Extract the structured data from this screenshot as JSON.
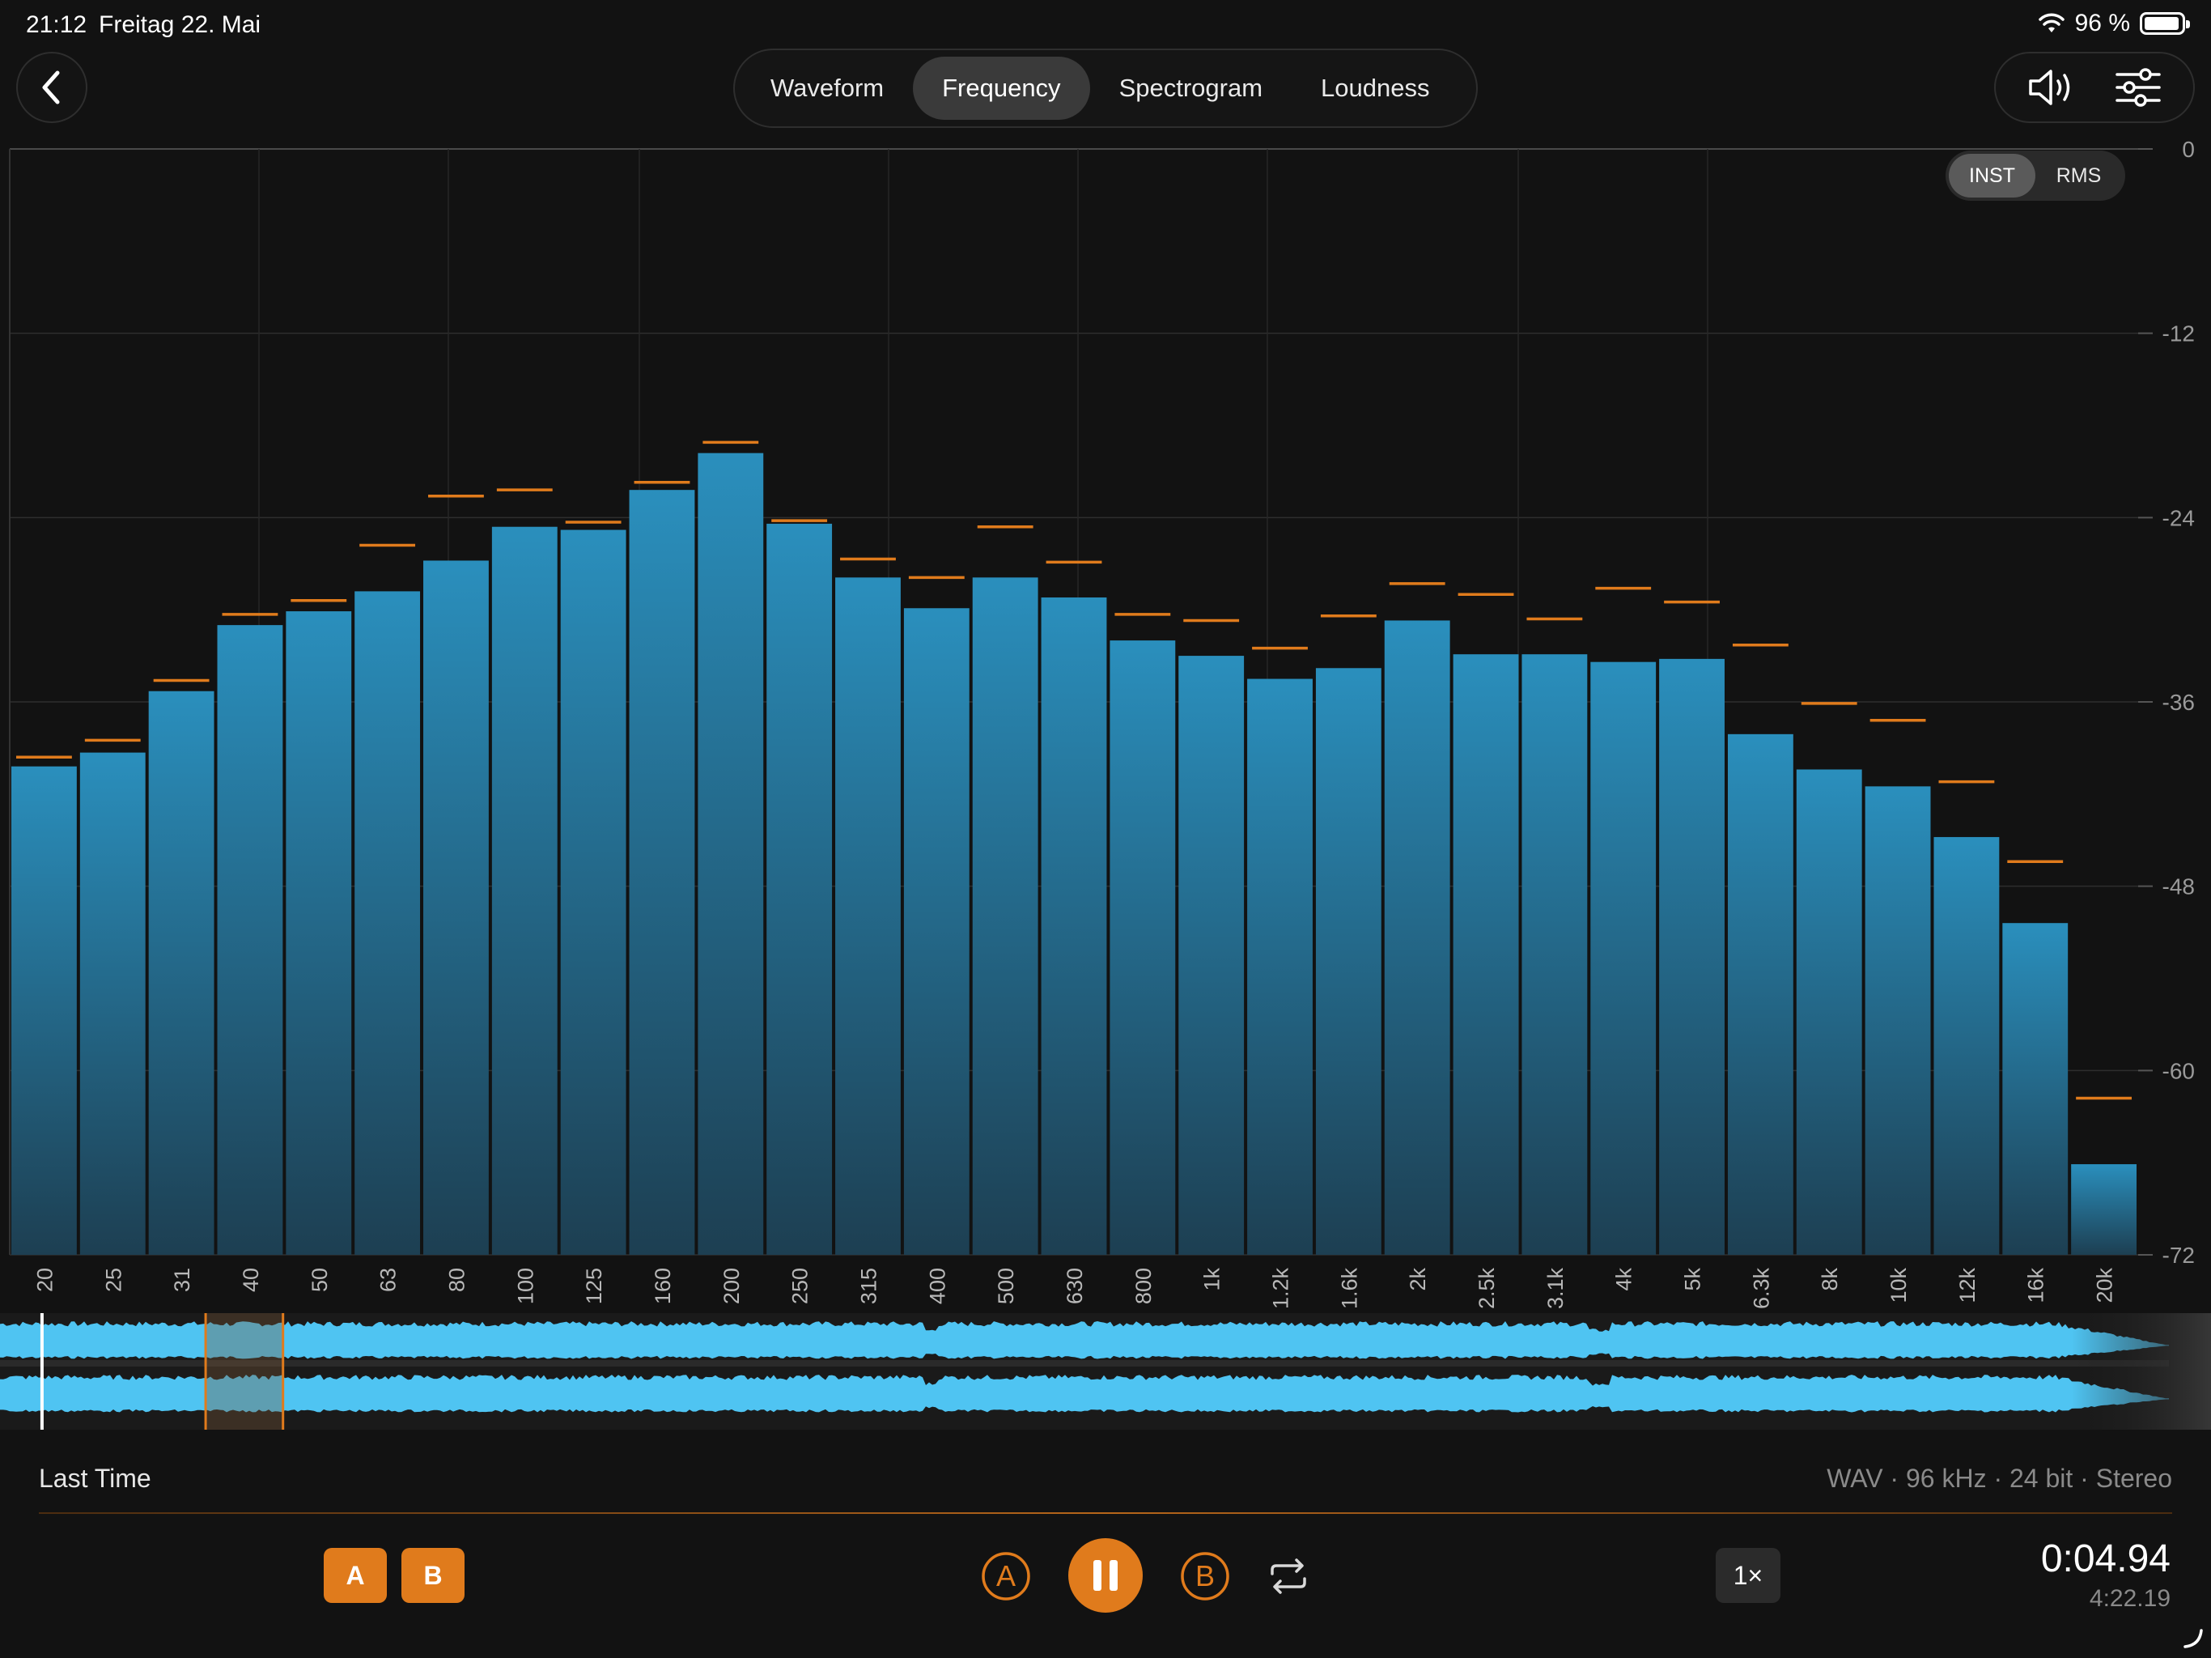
{
  "status": {
    "time": "21:12",
    "date": "Freitag 22. Mai",
    "battery": "96 %",
    "battery_level": 0.96
  },
  "tabs": [
    {
      "label": "Waveform",
      "active": false
    },
    {
      "label": "Frequency",
      "active": true
    },
    {
      "label": "Spectrogram",
      "active": false
    },
    {
      "label": "Loudness",
      "active": false
    }
  ],
  "icons": {
    "back": "chevron-left-icon",
    "speaker": "speaker-icon",
    "settings": "sliders-icon",
    "pause": "pause-icon",
    "loop": "repeat-icon"
  },
  "mode_toggle": {
    "inst": "INST",
    "rms": "RMS",
    "active": "INST"
  },
  "colors": {
    "bar_top": "#2a8fbd",
    "bar_bottom": "#1d3f52",
    "peak": "#e07b1c",
    "accent": "#e07b1c",
    "wave": "#4fc4f2"
  },
  "chart_data": {
    "type": "bar",
    "title": "",
    "xlabel": "",
    "ylabel": "",
    "ylim": [
      -72,
      0
    ],
    "y_ticks": [
      "0",
      "-12",
      "-24",
      "-36",
      "-48",
      "-60",
      "-72"
    ],
    "categories": [
      "20",
      "25",
      "31",
      "40",
      "50",
      "63",
      "80",
      "100",
      "125",
      "160",
      "200",
      "250",
      "315",
      "400",
      "500",
      "630",
      "800",
      "1k",
      "1.2k",
      "1.6k",
      "2k",
      "2.5k",
      "3.1k",
      "4k",
      "5k",
      "6.3k",
      "8k",
      "10k",
      "12k",
      "16k",
      "20k"
    ],
    "series": [
      {
        "values": [
          -40.2,
          -39.3,
          -35.3,
          -31.0,
          -30.1,
          -28.8,
          -26.8,
          -24.6,
          -24.8,
          -22.2,
          -19.8,
          -24.4,
          -27.9,
          -29.9,
          -27.9,
          -29.2,
          -32.0,
          -33.0,
          -34.5,
          -33.8,
          -30.7,
          -32.9,
          -32.9,
          -33.4,
          -33.2,
          -38.1,
          -40.4,
          -41.5,
          -44.8,
          -50.4,
          -66.1
        ]
      },
      {
        "values": [
          -39.6,
          -38.5,
          -34.6,
          -30.3,
          -29.4,
          -25.8,
          -22.6,
          -22.2,
          -24.3,
          -21.7,
          -19.1,
          -24.2,
          -26.7,
          -27.9,
          -24.6,
          -26.9,
          -30.3,
          -30.7,
          -32.5,
          -30.4,
          -28.3,
          -29.0,
          -30.6,
          -28.6,
          -29.5,
          -32.3,
          -36.1,
          -37.2,
          -41.2,
          -46.4,
          -61.8
        ]
      }
    ]
  },
  "overview": {
    "playhead_fraction": 0.019,
    "selection_fraction": [
      0.093,
      0.128
    ]
  },
  "track": {
    "title": "Last Time",
    "format": "WAV · 96 kHz · 24 bit · Stereo"
  },
  "controls": {
    "a_label": "A",
    "b_label": "B",
    "marker_a": "A",
    "marker_b": "B",
    "speed": "1×",
    "current_time": "0:04.94",
    "total_time": "4:22.19"
  }
}
